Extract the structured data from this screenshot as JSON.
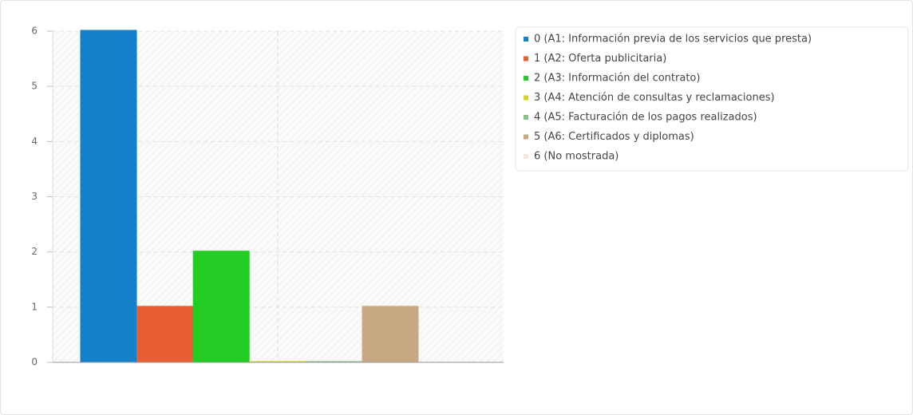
{
  "chart_data": {
    "type": "bar",
    "categories": [
      "0 (A1: Información previa de los servicios que presta)",
      "1 (A2: Oferta publicitaria)",
      "2 (A3: Información del contrato)",
      "3 (A4: Atención de consultas y reclamaciones)",
      "4 (A5: Facturación de los pagos realizados)",
      "5 (A6: Certificados y diplomas)",
      "6 (No mostrada)"
    ],
    "values": [
      6,
      1,
      2,
      0,
      0,
      1,
      0
    ],
    "colors": [
      "#1580cc",
      "#e85e33",
      "#22cc22",
      "#d4d42a",
      "#8cbf8c",
      "#c6a983",
      "#f7e6de"
    ],
    "ylim": [
      0,
      6
    ],
    "yticks": [
      0,
      1,
      2,
      3,
      4,
      5,
      6
    ],
    "grid": true,
    "legend": "right"
  }
}
